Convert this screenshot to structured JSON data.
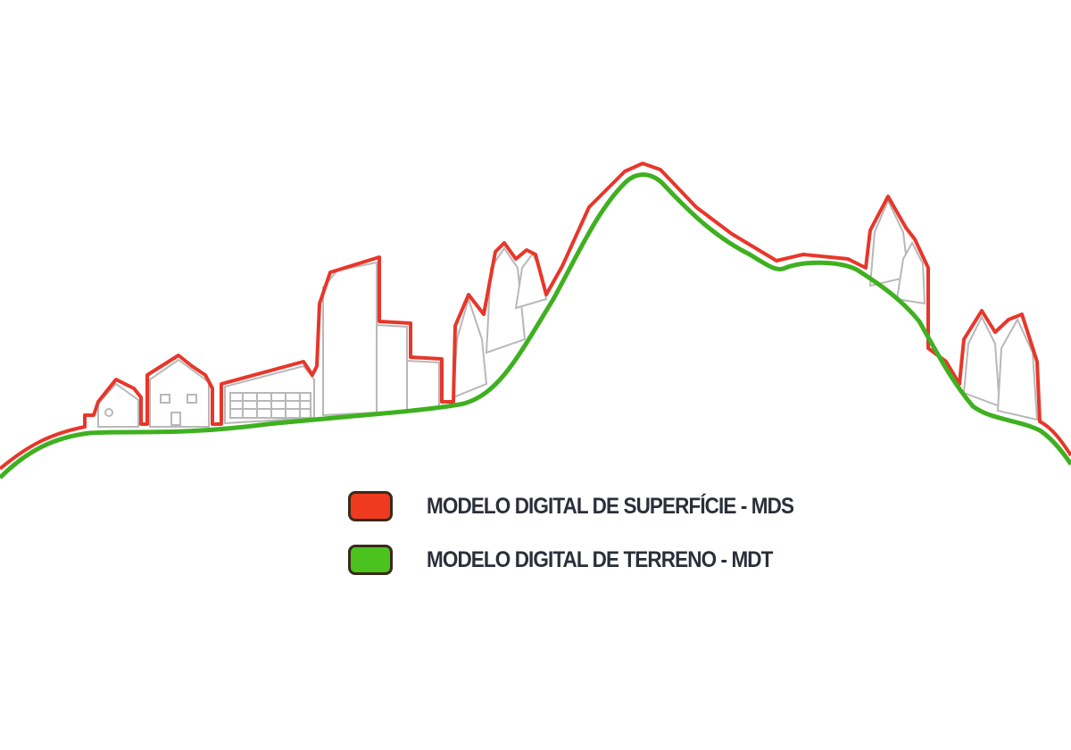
{
  "legend": {
    "items": [
      {
        "label": "MODELO DIGITAL DE SUPERFÍCIE - MDS",
        "color": "#f03a20"
      },
      {
        "label": "MODELO DIGITAL DE TERRENO - MDT",
        "color": "#4cc21e"
      }
    ]
  },
  "colors": {
    "surface": "#e8362a",
    "terrain": "#3fb020",
    "objects": "#b8b8b8"
  }
}
